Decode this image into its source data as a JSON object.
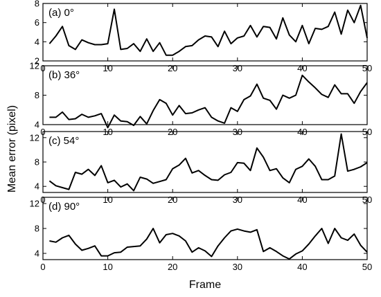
{
  "chart_data": {
    "type": "line",
    "xlabel": "Frame",
    "ylabel": "Mean error (pixel)",
    "xlim": [
      0,
      50
    ],
    "xticks": [
      0,
      10,
      20,
      30,
      40,
      50
    ],
    "panels": [
      {
        "label": "(a) 0°",
        "ylim": [
          2,
          8
        ],
        "yticks": [
          2,
          4,
          6,
          8
        ],
        "x": [
          1,
          2,
          3,
          4,
          5,
          6,
          7,
          8,
          9,
          10,
          11,
          12,
          13,
          14,
          15,
          16,
          17,
          18,
          19,
          20,
          21,
          22,
          23,
          24,
          25,
          26,
          27,
          28,
          29,
          30,
          31,
          32,
          33,
          34,
          35,
          36,
          37,
          38,
          39,
          40,
          41,
          42,
          43,
          44,
          45,
          46,
          47,
          48,
          49,
          50
        ],
        "y": [
          3.8,
          4.6,
          5.6,
          3.6,
          3.2,
          4.2,
          3.9,
          3.7,
          3.7,
          3.8,
          7.4,
          3.2,
          3.3,
          3.8,
          3.0,
          4.3,
          3.0,
          3.9,
          2.6,
          2.6,
          3.0,
          3.5,
          3.6,
          4.2,
          4.6,
          4.5,
          3.5,
          5.1,
          3.8,
          4.4,
          4.6,
          5.7,
          4.5,
          5.6,
          5.5,
          4.3,
          6.5,
          4.7,
          4.0,
          5.7,
          3.8,
          5.4,
          5.3,
          5.6,
          7.1,
          4.8,
          7.3,
          6.0,
          7.8,
          4.4
        ]
      },
      {
        "label": "(b) 36°",
        "ylim": [
          4,
          12
        ],
        "yticks": [
          4,
          8,
          12
        ],
        "x": [
          1,
          2,
          3,
          4,
          5,
          6,
          7,
          8,
          9,
          10,
          11,
          12,
          13,
          14,
          15,
          16,
          17,
          18,
          19,
          20,
          21,
          22,
          23,
          24,
          25,
          26,
          27,
          28,
          29,
          30,
          31,
          32,
          33,
          34,
          35,
          36,
          37,
          38,
          39,
          40,
          41,
          42,
          43,
          44,
          45,
          46,
          47,
          48,
          49,
          50
        ],
        "y": [
          5.0,
          5.0,
          5.7,
          4.7,
          4.8,
          5.4,
          5.0,
          5.2,
          5.5,
          3.6,
          5.3,
          4.5,
          4.4,
          3.9,
          5.1,
          4.1,
          5.9,
          7.4,
          6.9,
          5.3,
          6.6,
          5.5,
          5.6,
          6.0,
          6.3,
          5.0,
          4.5,
          4.2,
          6.3,
          5.8,
          7.4,
          7.9,
          9.5,
          7.6,
          7.3,
          6.1,
          8.0,
          7.6,
          8.0,
          10.7,
          9.8,
          9.0,
          8.1,
          7.7,
          9.4,
          8.2,
          8.2,
          6.9,
          8.5,
          9.7
        ]
      },
      {
        "label": "(c) 54°",
        "ylim": [
          3,
          13
        ],
        "yticks": [
          4,
          8,
          12
        ],
        "x": [
          1,
          2,
          3,
          4,
          5,
          6,
          7,
          8,
          9,
          10,
          11,
          12,
          13,
          14,
          15,
          16,
          17,
          18,
          19,
          20,
          21,
          22,
          23,
          24,
          25,
          26,
          27,
          28,
          29,
          30,
          31,
          32,
          33,
          34,
          35,
          36,
          37,
          38,
          39,
          40,
          41,
          42,
          43,
          44,
          45,
          46,
          47,
          48,
          49,
          50
        ],
        "y": [
          4.9,
          4.1,
          3.8,
          3.5,
          6.3,
          6.0,
          6.8,
          5.8,
          7.4,
          4.6,
          5.0,
          3.9,
          4.4,
          3.3,
          5.5,
          5.2,
          4.5,
          4.8,
          5.1,
          6.9,
          7.5,
          8.6,
          6.2,
          6.6,
          5.8,
          5.1,
          5.0,
          5.9,
          6.3,
          7.9,
          7.8,
          6.6,
          10.3,
          8.8,
          6.6,
          6.9,
          5.4,
          4.6,
          6.8,
          7.3,
          8.5,
          7.3,
          5.1,
          5.1,
          5.7,
          12.6,
          6.5,
          6.8,
          7.2,
          7.9
        ]
      },
      {
        "label": "(d) 90°",
        "ylim": [
          3,
          13
        ],
        "yticks": [
          4,
          8,
          12
        ],
        "x": [
          1,
          2,
          3,
          4,
          5,
          6,
          7,
          8,
          9,
          10,
          11,
          12,
          13,
          14,
          15,
          16,
          17,
          18,
          19,
          20,
          21,
          22,
          23,
          24,
          25,
          26,
          27,
          28,
          29,
          30,
          31,
          32,
          33,
          34,
          35,
          36,
          37,
          38,
          39,
          40,
          41,
          42,
          43,
          44,
          45,
          46,
          47,
          48,
          49,
          50
        ],
        "y": [
          6.0,
          5.8,
          6.5,
          6.9,
          5.5,
          4.5,
          4.8,
          5.2,
          3.6,
          3.6,
          4.1,
          4.2,
          5.0,
          5.1,
          5.2,
          6.3,
          8.0,
          5.7,
          7.0,
          7.2,
          6.8,
          6.0,
          4.2,
          4.9,
          4.4,
          3.5,
          5.2,
          6.5,
          7.6,
          7.9,
          7.6,
          7.4,
          7.8,
          4.3,
          4.9,
          4.3,
          3.6,
          3.1,
          3.9,
          4.4,
          5.5,
          6.8,
          8.0,
          5.6,
          8.0,
          6.5,
          6.1,
          7.1,
          5.3,
          4.2
        ]
      }
    ]
  }
}
